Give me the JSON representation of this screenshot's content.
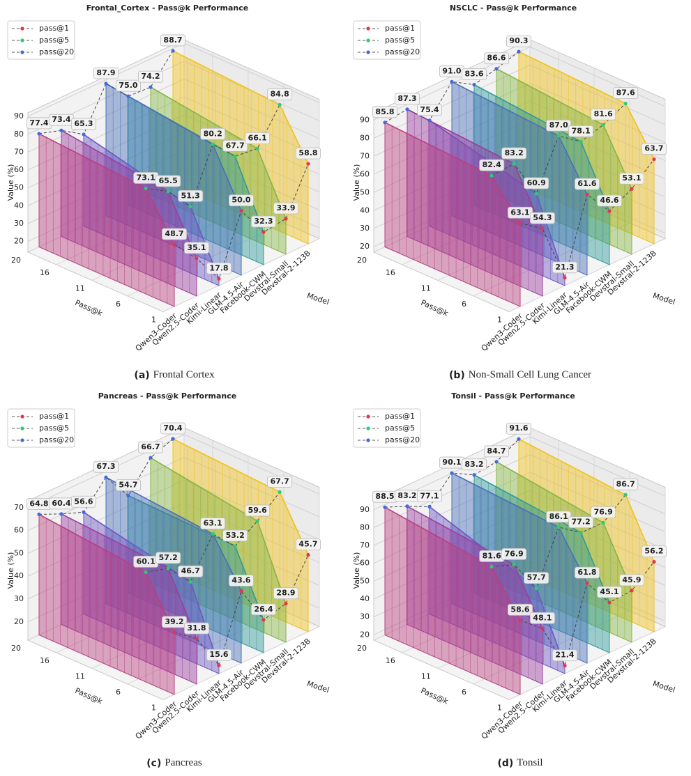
{
  "chart_data": [
    {
      "type": "line",
      "title": "Frontal_Cortex - Pass@k Performance",
      "caption_tag": "(a)",
      "caption": "Frontal Cortex",
      "xlabel": "Model",
      "ylabel": "Pass@k",
      "zlabel": "Value (%)",
      "categories": [
        "Qwen3-Coder",
        "Qwen2.5-Coder",
        "Kimi-Linear",
        "GLM-4.5-Air",
        "Facebook-CWM",
        "Devstral-Small",
        "Devstral-2-123B"
      ],
      "model_colors": [
        "#b8407e",
        "#9a3f9e",
        "#6e58c4",
        "#4a6fb8",
        "#2f9a9a",
        "#86b545",
        "#f0c21a"
      ],
      "klim": [
        1,
        20
      ],
      "kticks": [
        1,
        6,
        11,
        16,
        20
      ],
      "zlim": [
        14,
        92
      ],
      "zticks": [
        20,
        30,
        40,
        50,
        60,
        70,
        80,
        90
      ],
      "legend": "upper left",
      "series": [
        {
          "name": "pass@1",
          "color": "#e8344e",
          "k": 1,
          "values": [
            48.7,
            35.1,
            17.8,
            50.0,
            32.3,
            33.9,
            58.8
          ],
          "value_labels": [
            "48.7",
            "35.1",
            "17.8",
            "50.0",
            "32.3",
            "33.9",
            "58.8"
          ]
        },
        {
          "name": "pass@5",
          "color": "#2ecc71",
          "k": 5,
          "values": [
            73.1,
            65.5,
            51.3,
            80.2,
            67.7,
            66.1,
            84.8
          ],
          "value_labels": [
            "73.1",
            "65.5",
            "51.3",
            "80.2",
            "67.7",
            "66.1",
            "84.8"
          ]
        },
        {
          "name": "pass@20",
          "color": "#4169e1",
          "k": 20,
          "values": [
            77.4,
            73.4,
            65.3,
            87.9,
            75.0,
            74.2,
            88.7
          ],
          "value_labels": [
            "77.4",
            "73.4",
            "65.3",
            "87.9",
            "75.0",
            "74.2",
            "88.7"
          ]
        }
      ]
    },
    {
      "type": "line",
      "title": "NSCLC - Pass@k Performance",
      "caption_tag": "(b)",
      "caption": "Non-Small Cell Lung Cancer",
      "xlabel": "Model",
      "ylabel": "Pass@k",
      "zlabel": "Value (%)",
      "categories": [
        "Qwen3-Coder",
        "Qwen2.5-Coder",
        "Kimi-Linear",
        "GLM-4.5-Air",
        "Facebook-CWM",
        "Devstral-Small",
        "Devstral-2-123B"
      ],
      "model_colors": [
        "#b8407e",
        "#9a3f9e",
        "#6e58c4",
        "#4a6fb8",
        "#2f9a9a",
        "#86b545",
        "#f0c21a"
      ],
      "klim": [
        1,
        20
      ],
      "kticks": [
        1,
        6,
        11,
        16,
        20
      ],
      "zlim": [
        17,
        94
      ],
      "zticks": [
        20,
        30,
        40,
        50,
        60,
        70,
        80,
        90
      ],
      "legend": "upper left",
      "series": [
        {
          "name": "pass@1",
          "color": "#e8344e",
          "k": 1,
          "values": [
            63.1,
            54.3,
            21.3,
            61.6,
            46.6,
            53.1,
            63.7
          ],
          "value_labels": [
            "63.1",
            "54.3",
            "21.3",
            "61.6",
            "46.6",
            "53.1",
            "63.7"
          ]
        },
        {
          "name": "pass@5",
          "color": "#2ecc71",
          "k": 5,
          "values": [
            82.4,
            83.2,
            60.9,
            87.0,
            78.1,
            81.6,
            87.6
          ],
          "value_labels": [
            "82.4",
            "83.2",
            "60.9",
            "87.0",
            "78.1",
            "81.6",
            "87.6"
          ]
        },
        {
          "name": "pass@20",
          "color": "#4169e1",
          "k": 20,
          "values": [
            85.8,
            87.3,
            75.4,
            91.0,
            83.6,
            86.6,
            90.3
          ],
          "value_labels": [
            "85.8",
            "87.3",
            "75.4",
            "91.0",
            "83.6",
            "86.6",
            "90.3"
          ]
        }
      ]
    },
    {
      "type": "line",
      "title": "Pancreas - Pass@k Performance",
      "caption_tag": "(c)",
      "caption": "Pancreas",
      "xlabel": "Model",
      "ylabel": "Pass@k",
      "zlabel": "Value (%)",
      "categories": [
        "Qwen3-Coder",
        "Qwen2.5-Coder",
        "Kimi-Linear",
        "GLM-4.5-Air",
        "Facebook-CWM",
        "Devstral-Small",
        "Devstral-2-123B"
      ],
      "model_colors": [
        "#b8407e",
        "#9a3f9e",
        "#6e58c4",
        "#4a6fb8",
        "#2f9a9a",
        "#86b545",
        "#f0c21a"
      ],
      "klim": [
        1,
        20
      ],
      "kticks": [
        1,
        6,
        11,
        16,
        20
      ],
      "zlim": [
        12,
        73
      ],
      "zticks": [
        20,
        30,
        40,
        50,
        60,
        70
      ],
      "legend": "upper left",
      "series": [
        {
          "name": "pass@1",
          "color": "#e8344e",
          "k": 1,
          "values": [
            39.2,
            31.8,
            15.6,
            43.6,
            26.4,
            28.9,
            45.7
          ],
          "value_labels": [
            "39.2",
            "31.8",
            "15.6",
            "43.6",
            "26.4",
            "28.9",
            "45.7"
          ]
        },
        {
          "name": "pass@5",
          "color": "#2ecc71",
          "k": 5,
          "values": [
            60.1,
            57.2,
            46.7,
            63.1,
            53.2,
            59.6,
            67.7
          ],
          "value_labels": [
            "60.1",
            "57.2",
            "46.7",
            "63.1",
            "53.2",
            "59.6",
            "67.7"
          ]
        },
        {
          "name": "pass@20",
          "color": "#4169e1",
          "k": 20,
          "values": [
            64.8,
            60.4,
            56.6,
            67.3,
            54.7,
            66.7,
            70.4
          ],
          "value_labels": [
            "64.8",
            "60.4",
            "56.6",
            "67.3",
            "54.7",
            "66.7",
            "70.4"
          ]
        }
      ]
    },
    {
      "type": "line",
      "title": "Tonsil - Pass@k Performance",
      "caption_tag": "(d)",
      "caption": "Tonsil",
      "xlabel": "Model",
      "ylabel": "Pass@k",
      "zlabel": "Value (%)",
      "categories": [
        "Qwen3-Coder",
        "Qwen2.5-Coder",
        "Kimi-Linear",
        "GLM-4.5-Air",
        "Facebook-CWM",
        "Devstral-Small",
        "Devstral-2-123B"
      ],
      "model_colors": [
        "#b8407e",
        "#9a3f9e",
        "#6e58c4",
        "#4a6fb8",
        "#2f9a9a",
        "#86b545",
        "#f0c21a"
      ],
      "klim": [
        1,
        20
      ],
      "kticks": [
        1,
        6,
        11,
        16,
        20
      ],
      "zlim": [
        17,
        95
      ],
      "zticks": [
        20,
        30,
        40,
        50,
        60,
        70,
        80,
        90
      ],
      "legend": "upper left",
      "series": [
        {
          "name": "pass@1",
          "color": "#e8344e",
          "k": 1,
          "values": [
            58.6,
            48.1,
            21.4,
            61.8,
            45.1,
            45.9,
            56.2
          ],
          "value_labels": [
            "58.6",
            "48.1",
            "21.4",
            "61.8",
            "45.1",
            "45.9",
            "56.2"
          ]
        },
        {
          "name": "pass@5",
          "color": "#2ecc71",
          "k": 5,
          "values": [
            81.6,
            76.9,
            57.7,
            86.1,
            77.2,
            76.9,
            86.7
          ],
          "value_labels": [
            "81.6",
            "76.9",
            "57.7",
            "86.1",
            "77.2",
            "76.9",
            "86.7"
          ]
        },
        {
          "name": "pass@20",
          "color": "#4169e1",
          "k": 20,
          "values": [
            88.5,
            83.2,
            77.1,
            90.1,
            83.2,
            84.7,
            91.6
          ],
          "value_labels": [
            "88.5",
            "83.2",
            "77.1",
            "90.1",
            "83.2",
            "84.7",
            "91.6"
          ]
        }
      ]
    }
  ]
}
